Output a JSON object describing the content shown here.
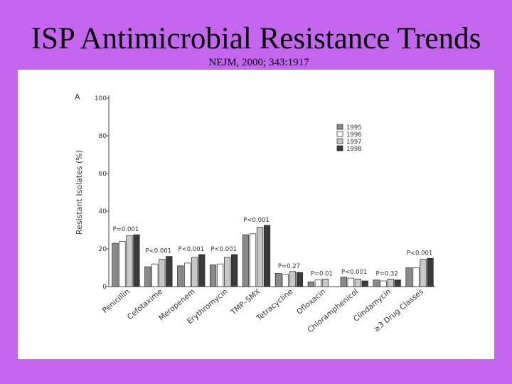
{
  "slide": {
    "title": "ISP Antimicrobial Resistance Trends",
    "citation": "NEJM, 2000; 343:1917"
  },
  "colors": {
    "background": "#c466ee",
    "panel": "#ffffff"
  },
  "chart_data": {
    "type": "bar",
    "panel_label": "A",
    "ylabel": "Resistant Isolates (%)",
    "ylim": [
      0,
      100
    ],
    "yticks": [
      0,
      20,
      40,
      60,
      80,
      100
    ],
    "legend_position": "top-right",
    "categories": [
      "Penicillin",
      "Cefotaxime",
      "Meropenem",
      "Erythromycin",
      "TMP–SMX",
      "Tetracycline",
      "Ofloxacin",
      "Chloramphenicol",
      "Clindamycin",
      "≥3 Drug Classes"
    ],
    "series": [
      {
        "name": "1995",
        "color": "#8a8a8a",
        "values": [
          23,
          10.5,
          11,
          11.5,
          27.5,
          7,
          2.5,
          5,
          3.5,
          10
        ]
      },
      {
        "name": "1996",
        "color": "#ffffff",
        "values": [
          24,
          12,
          12.5,
          12,
          28,
          6.5,
          3.5,
          4.5,
          3,
          10
        ]
      },
      {
        "name": "1997",
        "color": "#c8c8c8",
        "values": [
          27,
          14.5,
          15.5,
          15.5,
          31.5,
          8,
          4,
          4,
          4,
          14.5
        ]
      },
      {
        "name": "1998",
        "color": "#3a3a3a",
        "values": [
          27.5,
          16,
          17,
          17,
          32.5,
          7.5,
          null,
          3,
          3.5,
          15
        ]
      }
    ],
    "annotations": [
      "P=0.001",
      "P<0.001",
      "P<0.001",
      "P<0.001",
      "P<0.001",
      "P=0.27",
      "P=0.01",
      "P<0.001",
      "P=0.32",
      "P<0.001"
    ]
  }
}
